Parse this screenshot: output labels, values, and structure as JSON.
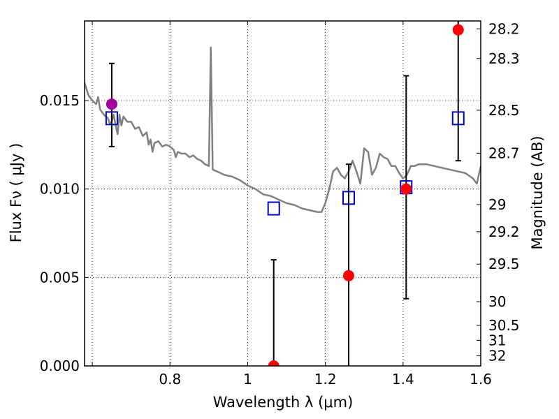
{
  "chart_data": {
    "type": "scatter",
    "xlabel": "Wavelength  λ (μm)",
    "ylabel": "Flux  Fν  ( μJy )",
    "y2label": "Magnitude (AB)",
    "xlim": [
      0.58,
      1.6
    ],
    "ylim": [
      0.0,
      0.0195
    ],
    "grid": true,
    "x_ticks": [
      {
        "value": 0.6,
        "label": ""
      },
      {
        "value": 0.8,
        "label": "0.8"
      },
      {
        "value": 1.0,
        "label": "1"
      },
      {
        "value": 1.2,
        "label": "1.2"
      },
      {
        "value": 1.4,
        "label": "1.4"
      },
      {
        "value": 1.6,
        "label": "1.6"
      }
    ],
    "y_ticks": [
      {
        "value": 0.0,
        "label": "0.000"
      },
      {
        "value": 0.005,
        "label": "0.005"
      },
      {
        "value": 0.01,
        "label": "0.010"
      },
      {
        "value": 0.015,
        "label": "0.015"
      }
    ],
    "y2_ticks": [
      {
        "label": "28.2",
        "mag": 28.2
      },
      {
        "label": "28.3",
        "mag": 28.3
      },
      {
        "label": "28.5",
        "mag": 28.5
      },
      {
        "label": "28.7",
        "mag": 28.7
      },
      {
        "label": "29",
        "mag": 29.0
      },
      {
        "label": "29.2",
        "mag": 29.2
      },
      {
        "label": "29.5",
        "mag": 29.5
      },
      {
        "label": "30",
        "mag": 30.0
      },
      {
        "label": "30.5",
        "mag": 30.5
      },
      {
        "label": "31",
        "mag": 31.0
      },
      {
        "label": "32",
        "mag": 32.0
      }
    ],
    "series": [
      {
        "kind": "line",
        "color": "#808080",
        "points": [
          [
            0.58,
            0.016
          ],
          [
            0.59,
            0.0153
          ],
          [
            0.6,
            0.015
          ],
          [
            0.61,
            0.0148
          ],
          [
            0.615,
            0.0152
          ],
          [
            0.62,
            0.0145
          ],
          [
            0.63,
            0.0142
          ],
          [
            0.64,
            0.014
          ],
          [
            0.645,
            0.0137
          ],
          [
            0.65,
            0.0138
          ],
          [
            0.655,
            0.0142
          ],
          [
            0.66,
            0.0136
          ],
          [
            0.665,
            0.0131
          ],
          [
            0.67,
            0.0142
          ],
          [
            0.675,
            0.0136
          ],
          [
            0.68,
            0.0141
          ],
          [
            0.69,
            0.0138
          ],
          [
            0.7,
            0.0138
          ],
          [
            0.71,
            0.0134
          ],
          [
            0.72,
            0.0135
          ],
          [
            0.73,
            0.013
          ],
          [
            0.74,
            0.0132
          ],
          [
            0.745,
            0.0125
          ],
          [
            0.75,
            0.0128
          ],
          [
            0.755,
            0.0121
          ],
          [
            0.76,
            0.0126
          ],
          [
            0.77,
            0.0127
          ],
          [
            0.78,
            0.0124
          ],
          [
            0.79,
            0.0125
          ],
          [
            0.8,
            0.0124
          ],
          [
            0.81,
            0.0122
          ],
          [
            0.815,
            0.0118
          ],
          [
            0.82,
            0.0121
          ],
          [
            0.83,
            0.012
          ],
          [
            0.84,
            0.012
          ],
          [
            0.85,
            0.0118
          ],
          [
            0.86,
            0.0119
          ],
          [
            0.87,
            0.0117
          ],
          [
            0.88,
            0.0116
          ],
          [
            0.89,
            0.0114
          ],
          [
            0.9,
            0.0113
          ],
          [
            0.905,
            0.018
          ],
          [
            0.91,
            0.0111
          ],
          [
            0.92,
            0.011
          ],
          [
            0.94,
            0.0108
          ],
          [
            0.96,
            0.0107
          ],
          [
            0.98,
            0.0105
          ],
          [
            1.0,
            0.0102
          ],
          [
            1.02,
            0.01
          ],
          [
            1.04,
            0.0097
          ],
          [
            1.06,
            0.0096
          ],
          [
            1.08,
            0.0094
          ],
          [
            1.1,
            0.0092
          ],
          [
            1.12,
            0.0091
          ],
          [
            1.14,
            0.0089
          ],
          [
            1.16,
            0.0088
          ],
          [
            1.18,
            0.0087
          ],
          [
            1.19,
            0.0087
          ],
          [
            1.2,
            0.0092
          ],
          [
            1.21,
            0.01
          ],
          [
            1.22,
            0.011
          ],
          [
            1.23,
            0.0112
          ],
          [
            1.24,
            0.0108
          ],
          [
            1.25,
            0.0106
          ],
          [
            1.26,
            0.011
          ],
          [
            1.27,
            0.0116
          ],
          [
            1.28,
            0.011
          ],
          [
            1.29,
            0.0103
          ],
          [
            1.3,
            0.0123
          ],
          [
            1.31,
            0.0121
          ],
          [
            1.32,
            0.0108
          ],
          [
            1.33,
            0.0112
          ],
          [
            1.34,
            0.012
          ],
          [
            1.35,
            0.0118
          ],
          [
            1.36,
            0.0117
          ],
          [
            1.37,
            0.0113
          ],
          [
            1.38,
            0.0113
          ],
          [
            1.39,
            0.0109
          ],
          [
            1.4,
            0.0106
          ],
          [
            1.41,
            0.0108
          ],
          [
            1.42,
            0.0113
          ],
          [
            1.43,
            0.0113
          ],
          [
            1.44,
            0.0114
          ],
          [
            1.46,
            0.0114
          ],
          [
            1.48,
            0.0113
          ],
          [
            1.5,
            0.0112
          ],
          [
            1.52,
            0.0111
          ],
          [
            1.54,
            0.011
          ],
          [
            1.56,
            0.0109
          ],
          [
            1.58,
            0.0106
          ],
          [
            1.59,
            0.0103
          ],
          [
            1.6,
            0.0113
          ]
        ]
      },
      {
        "kind": "errorbar",
        "color": "#000000",
        "points": [
          {
            "x": 0.65,
            "low": 0.0124,
            "high": 0.0171
          },
          {
            "x": 1.067,
            "low": 0.0,
            "high": 0.006
          },
          {
            "x": 1.26,
            "low": 0.0,
            "high": 0.0114
          },
          {
            "x": 1.408,
            "low": 0.0038,
            "high": 0.0164
          },
          {
            "x": 1.542,
            "low": 0.0116,
            "high": 0.0197
          }
        ]
      },
      {
        "kind": "open-square",
        "color": "#0000cc",
        "points": [
          [
            0.65,
            0.014
          ],
          [
            1.067,
            0.0089
          ],
          [
            1.26,
            0.0095
          ],
          [
            1.408,
            0.0101
          ],
          [
            1.542,
            0.014
          ]
        ]
      },
      {
        "kind": "filled-circle",
        "color": "#ff0000",
        "points": [
          [
            1.067,
            0.0
          ],
          [
            1.26,
            0.0051
          ],
          [
            1.408,
            0.01
          ],
          [
            1.542,
            0.019
          ]
        ]
      },
      {
        "kind": "filled-circle",
        "color": "#a000a0",
        "points": [
          [
            0.65,
            0.0148
          ]
        ]
      }
    ]
  }
}
